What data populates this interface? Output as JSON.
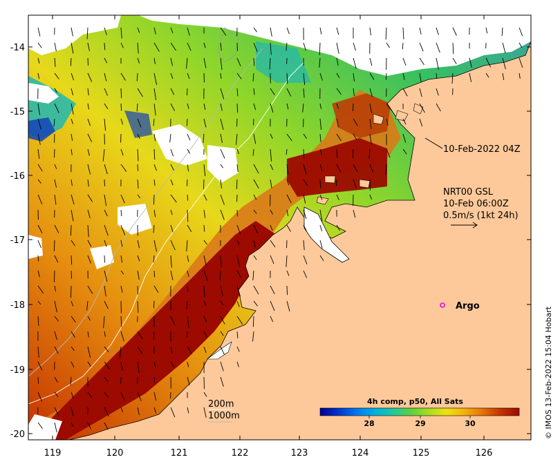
{
  "map": {
    "x_ticks": [
      "119",
      "120",
      "121",
      "122",
      "123",
      "124",
      "125",
      "126"
    ],
    "y_ticks": [
      "-14",
      "-15",
      "-16",
      "-17",
      "-18",
      "-19",
      "-20"
    ],
    "colors": {
      "land": "#fdc99a",
      "cloud": "#ffffff",
      "sst_warm": "#9c0a00",
      "sst_orange": "#d97a18",
      "sst_yellow": "#f2e21c",
      "sst_green": "#6dcf2b",
      "sst_cyan": "#1fb7b4",
      "sst_blue": "#1443b8",
      "argo_marker": "#ee00ee"
    }
  },
  "annotations": {
    "time_label": "10-Feb-2022 04Z",
    "current_model": "NRT00 GSL",
    "current_time": "10-Feb 06:00Z",
    "vector_scale": "0.5m/s (1kt 24h)",
    "argo_label": "Argo"
  },
  "legend": {
    "contour_200": "200m",
    "contour_1000": "1000m",
    "colorbar_title": "4h comp, p50, All Sats",
    "colorbar_ticks": [
      "28",
      "29",
      "30"
    ],
    "colorbar_stops": [
      "#00008f",
      "#0033cc",
      "#0077ee",
      "#00b0e0",
      "#20c8a0",
      "#5cd040",
      "#a8dc20",
      "#f0e010",
      "#f5b00e",
      "#e6700a",
      "#c43000",
      "#9c0a00"
    ]
  },
  "credit": "© IMOS 13-Feb-2022 15:04 Hobart"
}
